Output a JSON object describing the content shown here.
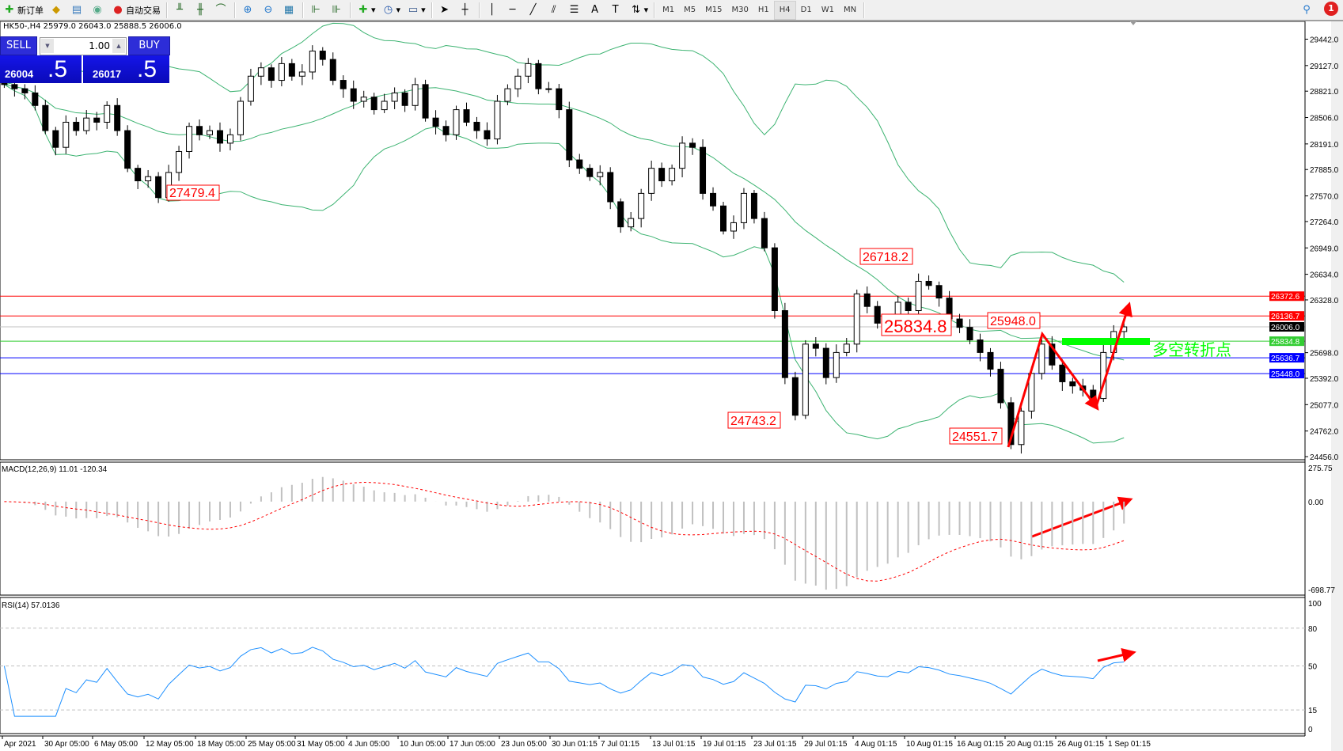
{
  "toolbar": {
    "new_order_label": "新订单",
    "auto_trading_label": "自动交易",
    "timeframes": [
      "M1",
      "M5",
      "M15",
      "M30",
      "H1",
      "H4",
      "D1",
      "W1",
      "MN"
    ],
    "active_timeframe": "H4",
    "notification_count": "1"
  },
  "chart_header": "HK50-,H4  25979.0 26043.0 25888.5 26006.0",
  "trade_panel": {
    "sell_label": "SELL",
    "buy_label": "BUY",
    "volume": "1.00",
    "sell_price_main": "26004",
    "sell_price_big": ".5",
    "buy_price_main": "26017",
    "buy_price_big": ".5",
    "sell_color": "#1010d0",
    "buy_color": "#1010d0"
  },
  "price_axis": [
    "29442.0",
    "29127.0",
    "28821.0",
    "28506.0",
    "28191.0",
    "27885.0",
    "27570.0",
    "27264.0",
    "26949.0",
    "26634.0",
    "26328.0",
    "25698.0",
    "25392.0",
    "25077.0",
    "24762.0",
    "24456.0"
  ],
  "price_lines": [
    {
      "value": "26372.6",
      "color": "#ff0000"
    },
    {
      "value": "26136.7",
      "color": "#ff0000"
    },
    {
      "value": "26006.0",
      "color": "#000000",
      "line": "#c0c0c0"
    },
    {
      "value": "25834.8",
      "color": "#32cd32"
    },
    {
      "value": "25636.7",
      "color": "#0000ff"
    },
    {
      "value": "25448.0",
      "color": "#0000ff"
    }
  ],
  "annotations": {
    "labels": [
      "27479.4",
      "26718.2",
      "25834.8",
      "24743.2",
      "25948.0",
      "24551.7"
    ],
    "turning_point_text": "多空转折点",
    "turning_point_color": "#00ff00",
    "arrow_color": "#ff0000"
  },
  "candles_close": [
    28900,
    28850,
    28800,
    28650,
    28350,
    28150,
    28450,
    28350,
    28500,
    28450,
    28650,
    28350,
    27900,
    27750,
    27800,
    27550,
    27850,
    28100,
    28400,
    28300,
    28350,
    28200,
    28300,
    28700,
    29000,
    29100,
    28950,
    29150,
    29000,
    29050,
    29300,
    29200,
    28950,
    28850,
    28700,
    28750,
    28600,
    28700,
    28800,
    28650,
    28900,
    28500,
    28400,
    28300,
    28600,
    28450,
    28350,
    28250,
    28700,
    28850,
    29000,
    29150,
    28850,
    28850,
    28600,
    28000,
    27900,
    27800,
    27850,
    27500,
    27200,
    27300,
    27600,
    27900,
    27750,
    27900,
    28200,
    28150,
    27600,
    27450,
    27150,
    27250,
    27600,
    27300,
    26950,
    26200,
    25400,
    24950,
    25800,
    25750,
    25400,
    25700,
    25800,
    26400,
    26250,
    26050,
    26000,
    26300,
    26200,
    26550,
    26500,
    26350,
    26100,
    26000,
    25850,
    25700,
    25500,
    25100,
    24600,
    25000,
    25450,
    25800,
    25550,
    25350,
    25300,
    25250,
    25150,
    25700,
    25950,
    26006
  ],
  "macd": {
    "label": "MACD(12,26,9) 11.01 -120.34",
    "axis": [
      "275.75",
      "0.00",
      "-698.77"
    ],
    "histogram_color": "#c0c0c0",
    "signal_color": "#ff0000"
  },
  "rsi": {
    "label": "RSI(14) 57.0136",
    "axis": [
      "100",
      "80",
      "50",
      "15",
      "0"
    ],
    "line_color": "#1e90ff"
  },
  "time_axis": [
    "Apr 2021",
    "30 Apr 05:00",
    "6 May 05:00",
    "12 May 05:00",
    "18 May 05:00",
    "25 May 05:00",
    "31 May 05:00",
    "4 Jun 05:00",
    "10 Jun 05:00",
    "17 Jun 05:00",
    "23 Jun 05:00",
    "30 Jun 01:15",
    "7 Jul 01:15",
    "13 Jul 01:15",
    "19 Jul 01:15",
    "23 Jul 01:15",
    "29 Jul 01:15",
    "4 Aug 01:15",
    "10 Aug 01:15",
    "16 Aug 01:15",
    "20 Aug 01:15",
    "26 Aug 01:15",
    "1 Sep 01:15"
  ],
  "bollinger_color": "#3cb371"
}
